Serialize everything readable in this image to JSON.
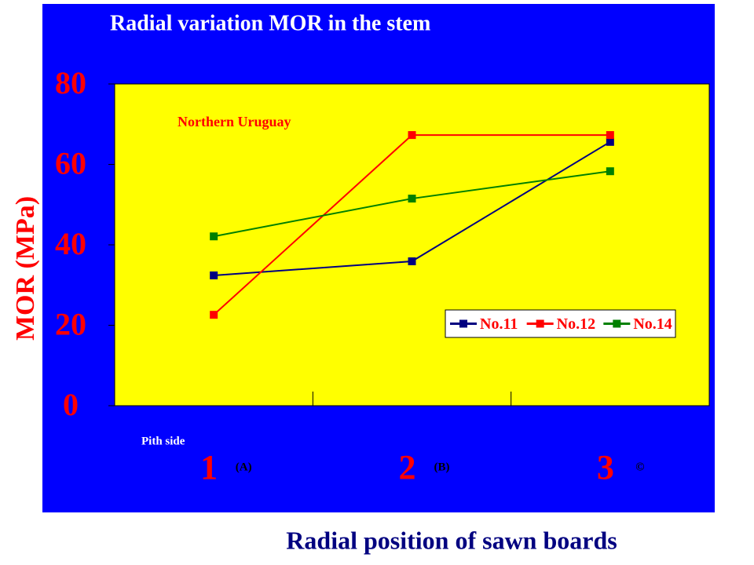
{
  "chart_data": {
    "type": "line",
    "title": "Radial variation MOR in the stem",
    "annotation": "Northern Uruguay",
    "x_note": "Pith side",
    "ylabel": "MOR (MPa)",
    "xlabel": "Radial position of sawn boards",
    "categories": [
      "1",
      "2",
      "3"
    ],
    "category_sublabels": [
      "(A)",
      "(B)",
      "©"
    ],
    "ylim": [
      0,
      80
    ],
    "yticks": [
      0,
      20,
      40,
      60,
      80
    ],
    "legend": "lower right",
    "series": [
      {
        "name": "No.11",
        "color": "#000080",
        "values": [
          32.4,
          35.9,
          65.6
        ]
      },
      {
        "name": "No.12",
        "color": "#ff0000",
        "values": [
          22.6,
          67.3,
          67.3
        ]
      },
      {
        "name": "No.14",
        "color": "#008000",
        "values": [
          42.1,
          51.5,
          58.3
        ]
      }
    ]
  }
}
